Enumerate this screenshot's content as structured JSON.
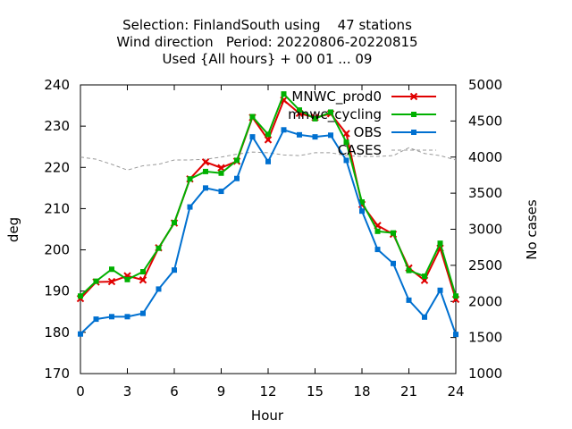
{
  "chart_data": {
    "type": "line",
    "title_lines": [
      "Selection: FinlandSouth using    47 stations",
      "Wind direction   Period: 20220806-20220815",
      "Used {All hours} + 00 01 ... 09"
    ],
    "xlabel": "Hour",
    "ylabel": "deg",
    "y2label": "No cases",
    "xlim": [
      0,
      24
    ],
    "ylim": [
      170,
      240
    ],
    "y2lim": [
      1000,
      5000
    ],
    "xticks": [
      "0",
      "3",
      "6",
      "9",
      "12",
      "15",
      "18",
      "21",
      "24"
    ],
    "yticks": [
      "170",
      "180",
      "190",
      "200",
      "210",
      "220",
      "230",
      "240"
    ],
    "y2ticks": [
      "1000",
      "1500",
      "2000",
      "2500",
      "3000",
      "3500",
      "4000",
      "4500",
      "5000"
    ],
    "grid": false,
    "legend_position": "top-right",
    "x": [
      0,
      1,
      2,
      3,
      4,
      5,
      6,
      7,
      8,
      9,
      10,
      11,
      12,
      13,
      14,
      15,
      16,
      17,
      18,
      19,
      20,
      21,
      22,
      23,
      24
    ],
    "series": [
      {
        "name": "MNWC_prod0",
        "color": "#e00000",
        "marker": "x",
        "axis": "left",
        "values": [
          188.2,
          192.2,
          192.3,
          193.7,
          192.7,
          200.5,
          206.5,
          217.2,
          221.3,
          219.9,
          221.5,
          232.1,
          226.7,
          236.3,
          233.1,
          232.1,
          233.0,
          228.2,
          211.0,
          205.9,
          203.8,
          195.6,
          192.6,
          200.4,
          188.0
        ]
      },
      {
        "name": "mnwc_cycling",
        "color": "#00b000",
        "marker": "square",
        "axis": "left",
        "values": [
          188.8,
          192.4,
          195.3,
          192.8,
          194.7,
          200.4,
          206.6,
          217.2,
          219.0,
          218.6,
          221.7,
          232.3,
          228.0,
          237.8,
          233.9,
          231.8,
          233.4,
          226.1,
          211.6,
          204.5,
          204.1,
          195.0,
          193.6,
          201.6,
          188.8
        ]
      },
      {
        "name": "OBS",
        "color": "#0070d0",
        "marker": "square",
        "axis": "left",
        "values": [
          179.6,
          183.2,
          183.8,
          183.8,
          184.6,
          190.5,
          195.1,
          210.4,
          215.0,
          214.2,
          217.3,
          227.4,
          221.4,
          229.1,
          227.9,
          227.4,
          227.8,
          221.7,
          209.4,
          200.1,
          196.7,
          187.8,
          183.7,
          190.2,
          179.5
        ]
      },
      {
        "name": "CASES",
        "color": "#999999",
        "style": "dashed",
        "axis": "right",
        "values": [
          4000,
          3970,
          3900,
          3820,
          3880,
          3900,
          3960,
          3960,
          3970,
          4000,
          4040,
          4070,
          4060,
          4030,
          4020,
          4060,
          4060,
          4020,
          4010,
          4010,
          4020,
          4130,
          4050,
          4020,
          3960
        ]
      }
    ]
  }
}
